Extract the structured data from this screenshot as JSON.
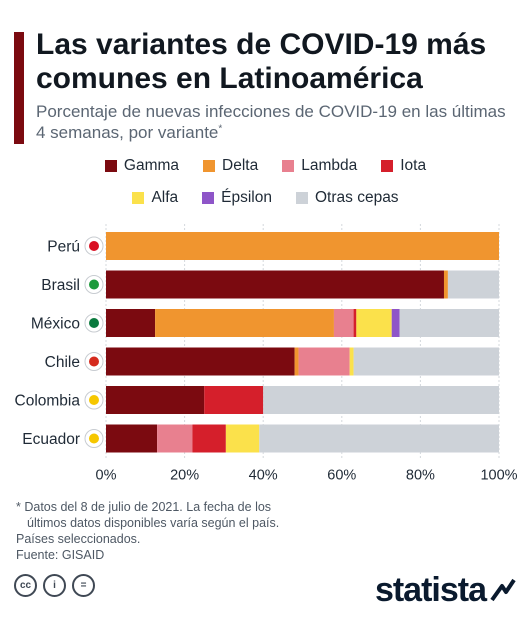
{
  "header": {
    "title": "Las variantes de COVID-19 más comunes en Latinoamérica",
    "subtitle": "Porcentaje de nuevas infecciones de COVID-19 en las últimas 4 semanas, por variante",
    "subtitle_mark": "*"
  },
  "chart_data": {
    "type": "bar",
    "orientation": "horizontal",
    "stacked": true,
    "categories": [
      "Perú",
      "Brasil",
      "México",
      "Chile",
      "Colombia",
      "Ecuador"
    ],
    "series": [
      {
        "name": "Gamma",
        "color": "#7b0a10",
        "values": [
          0,
          86,
          12.5,
          48,
          25,
          13
        ]
      },
      {
        "name": "Delta",
        "color": "#f0952f",
        "values": [
          100,
          1,
          45.5,
          1,
          0,
          0
        ]
      },
      {
        "name": "Lambda",
        "color": "#e8808f",
        "values": [
          0,
          0,
          5,
          13,
          0,
          9
        ]
      },
      {
        "name": "Iota",
        "color": "#d51f2b",
        "values": [
          0,
          0,
          0.7,
          0,
          15,
          8.5
        ]
      },
      {
        "name": "Alfa",
        "color": "#fbe14b",
        "values": [
          0,
          0,
          9,
          1,
          0,
          8.5
        ]
      },
      {
        "name": "Épsilon",
        "color": "#8e55c8",
        "values": [
          0,
          0,
          2,
          0,
          0,
          0
        ]
      },
      {
        "name": "Otras cepas",
        "color": "#cdd2d8",
        "values": [
          0,
          13,
          25.3,
          37,
          60,
          61
        ]
      }
    ],
    "xlim": [
      0,
      100
    ],
    "x_ticks": [
      "0%",
      "20%",
      "40%",
      "60%",
      "80%",
      "100%"
    ],
    "grid": true,
    "legend": "top"
  },
  "footer": {
    "note_line1": "* Datos del 8 de julio de 2021. La fecha de los",
    "note_line2": "últimos datos disponibles varía según el país.",
    "note_line3": "Países seleccionados.",
    "source": "Fuente: GISAID",
    "cc_labels": [
      "cc",
      "i",
      "="
    ],
    "logo_text": "statista"
  }
}
